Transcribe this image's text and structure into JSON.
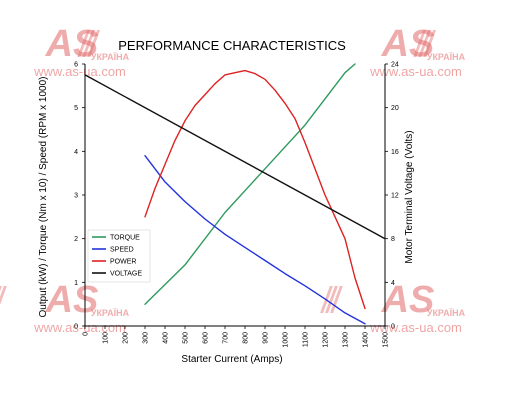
{
  "chart_data": {
    "type": "line",
    "title": "PERFORMANCE CHARACTERISTICS",
    "xlabel": "Starter Current (Amps)",
    "ylabel_left": "Output (kW) / Torque (Nm x 10) / Speed (RPM x 1000)",
    "ylabel_right": "Motor Terminal Voltage (Volts)",
    "xlim": [
      0,
      1500
    ],
    "ylim_left": [
      0,
      6
    ],
    "ylim_right": [
      0,
      24
    ],
    "x_ticks": [
      "0",
      "100",
      "200",
      "300",
      "400",
      "500",
      "600",
      "700",
      "800",
      "900",
      "1000",
      "1100",
      "1200",
      "1300",
      "1400",
      "1500"
    ],
    "y_left_ticks": [
      "0",
      "1",
      "2",
      "3",
      "4",
      "5",
      "6"
    ],
    "y_right_ticks": [
      "0",
      "4",
      "8",
      "12",
      "16",
      "20",
      "24"
    ],
    "grid": false,
    "legend_position": "lower-left",
    "series": [
      {
        "name": "TORQUE",
        "axis": "left",
        "color": "#2e9a5e",
        "x": [
          300,
          500,
          700,
          900,
          1100,
          1300,
          1350
        ],
        "y": [
          0.5,
          1.4,
          2.6,
          3.6,
          4.6,
          5.8,
          6.0
        ]
      },
      {
        "name": "SPEED",
        "axis": "left",
        "color": "#2233dd",
        "x": [
          300,
          400,
          500,
          600,
          700,
          800,
          900,
          1000,
          1100,
          1200,
          1300,
          1400
        ],
        "y": [
          3.9,
          3.3,
          2.85,
          2.45,
          2.1,
          1.8,
          1.5,
          1.2,
          0.92,
          0.62,
          0.3,
          0.05
        ]
      },
      {
        "name": "POWER",
        "axis": "left",
        "color": "#dd2222",
        "x": [
          300,
          350,
          400,
          450,
          500,
          550,
          600,
          650,
          700,
          750,
          800,
          850,
          900,
          950,
          1000,
          1050,
          1100,
          1150,
          1200,
          1250,
          1300,
          1350,
          1400
        ],
        "y": [
          2.5,
          3.15,
          3.7,
          4.25,
          4.7,
          5.05,
          5.3,
          5.55,
          5.75,
          5.8,
          5.85,
          5.78,
          5.65,
          5.4,
          5.1,
          4.75,
          4.2,
          3.6,
          3.0,
          2.5,
          2.0,
          1.1,
          0.4
        ]
      },
      {
        "name": "VOLTAGE",
        "axis": "right",
        "color": "#111111",
        "x": [
          0,
          1500
        ],
        "y": [
          23.0,
          8.0
        ]
      }
    ]
  },
  "watermark": {
    "logo": "AS",
    "country": "УКРАЇНА",
    "url": "www.as-ua.com",
    "color": "#e36a6a"
  }
}
